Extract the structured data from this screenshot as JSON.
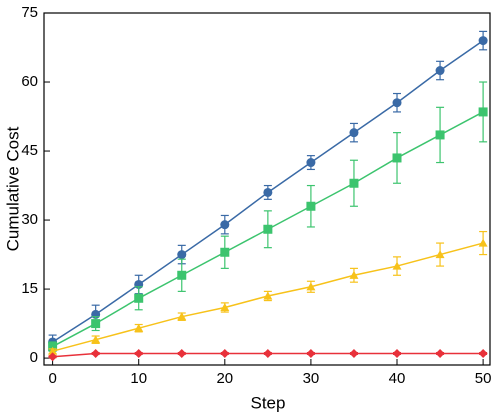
{
  "chart_data": {
    "type": "line",
    "xlabel": "Step",
    "ylabel": "Cumulative Cost",
    "x": [
      0,
      5,
      10,
      15,
      20,
      25,
      30,
      35,
      40,
      45,
      50
    ],
    "xlim": [
      -1,
      50.8
    ],
    "xticks": [
      0,
      10,
      20,
      30,
      40,
      50
    ],
    "ylim": [
      -1.5,
      75
    ],
    "yticks": [
      0,
      15,
      30,
      45,
      60,
      75
    ],
    "series": [
      {
        "color": "#3a6aa6",
        "marker": "circle",
        "values": [
          3.5,
          9.5,
          16,
          22.5,
          29,
          36,
          42.5,
          49,
          55.5,
          62.5,
          69
        ],
        "errors": [
          1.5,
          2,
          2,
          2,
          2,
          1.5,
          1.5,
          2,
          2,
          2,
          2
        ]
      },
      {
        "color": "#3cc46e",
        "marker": "square",
        "values": [
          2.5,
          7.5,
          13,
          18,
          23,
          28,
          33,
          38,
          43.5,
          48.5,
          53.5
        ],
        "errors": [
          1,
          1.5,
          2.5,
          3.5,
          3.5,
          4,
          4.5,
          5,
          5.5,
          6,
          6.5
        ]
      },
      {
        "color": "#f7c21a",
        "marker": "triangle",
        "values": [
          1.5,
          4,
          6.5,
          9,
          11,
          13.5,
          15.5,
          18,
          20,
          22.5,
          25
        ],
        "errors": [
          0.5,
          0.8,
          0.8,
          0.8,
          1,
          1,
          1.2,
          1.5,
          2,
          2.5,
          2.5
        ]
      },
      {
        "color": "#e8313a",
        "marker": "diamond",
        "values": [
          0.3,
          1,
          1,
          1,
          1,
          1,
          1,
          1,
          1,
          1,
          1
        ],
        "errors": [
          0.2,
          0.2,
          0.2,
          0.2,
          0.2,
          0.2,
          0.2,
          0.2,
          0.2,
          0.2,
          0.2
        ]
      }
    ]
  }
}
